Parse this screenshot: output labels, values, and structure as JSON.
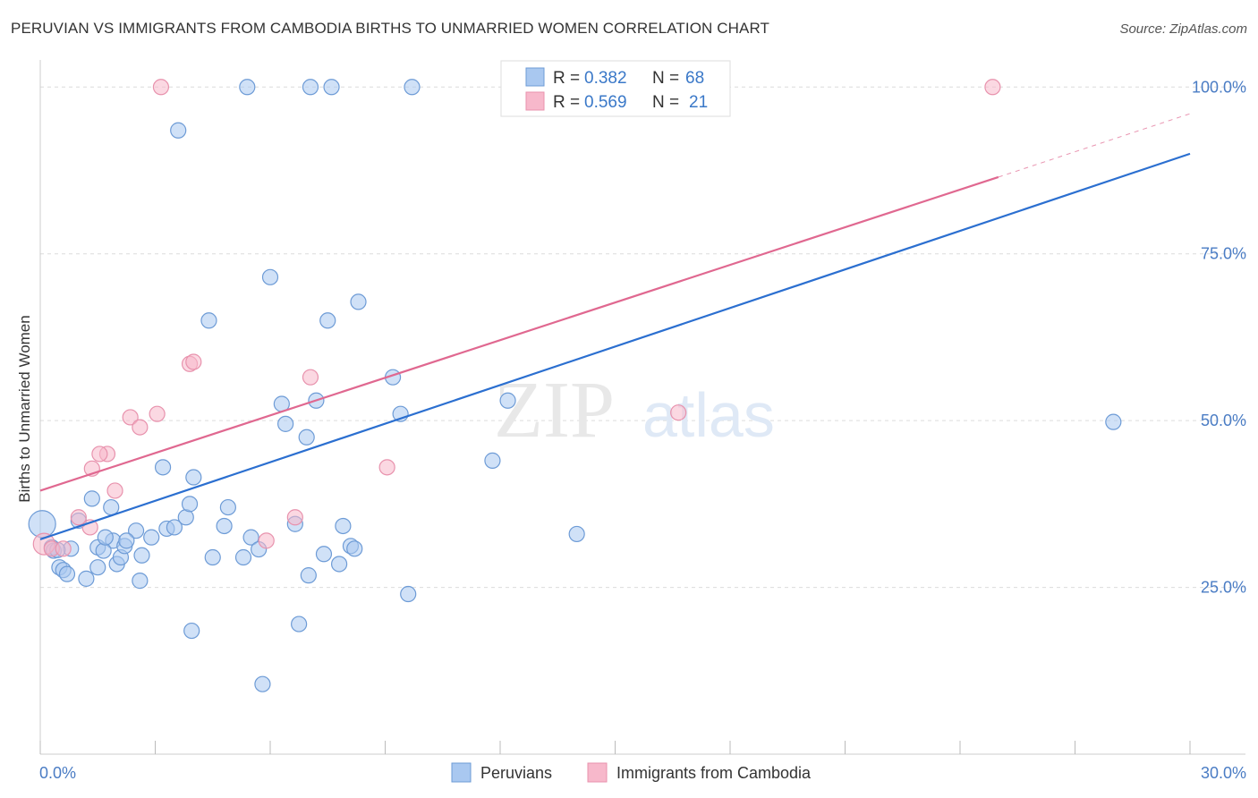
{
  "header": {
    "title": "PERUVIAN VS IMMIGRANTS FROM CAMBODIA BIRTHS TO UNMARRIED WOMEN CORRELATION CHART",
    "source": "Source: ZipAtlas.com"
  },
  "watermark": {
    "zip": "ZIP",
    "atlas": "atlas"
  },
  "legend": {
    "rows": [
      {
        "r_label": "R =",
        "r_value": "0.382",
        "n_label": "N =",
        "n_value": "68",
        "color": "#a9c8f0"
      },
      {
        "r_label": "R =",
        "r_value": "0.569",
        "n_label": "N =",
        "n_value": "21",
        "color": "#f7b8cb"
      }
    ]
  },
  "bottom_legend": [
    {
      "label": "Peruvians",
      "color": "#a9c8f0"
    },
    {
      "label": "Immigrants from Cambodia",
      "color": "#f7b8cb"
    }
  ],
  "chart_data": {
    "type": "scatter",
    "title": "PERUVIAN VS IMMIGRANTS FROM CAMBODIA BIRTHS TO UNMARRIED WOMEN CORRELATION CHART",
    "ylabel": "Births to Unmarried Women",
    "xlabel": "",
    "xlim": [
      0,
      30
    ],
    "ylim": [
      0,
      105
    ],
    "x_tick_labels": [
      {
        "v": 0,
        "label": "0.0%"
      },
      {
        "v": 30,
        "label": "30.0%"
      }
    ],
    "y_tick_labels": [
      {
        "v": 25,
        "label": "25.0%"
      },
      {
        "v": 50,
        "label": "50.0%"
      },
      {
        "v": 75,
        "label": "75.0%"
      },
      {
        "v": 100,
        "label": "100.0%"
      }
    ],
    "grid": true,
    "series": [
      {
        "name": "Peruvians",
        "color": "#a9c8f0",
        "stroke": "#6d9bd6",
        "line_color": "#2b6fd0",
        "trend": [
          [
            0,
            32.2
          ],
          [
            30,
            90.0
          ]
        ],
        "points": [
          [
            0.05,
            34.5
          ],
          [
            0.3,
            31.0
          ],
          [
            0.5,
            28.0
          ],
          [
            0.6,
            27.6
          ],
          [
            0.35,
            30.5
          ],
          [
            0.8,
            30.8
          ],
          [
            1.0,
            35.0
          ],
          [
            1.35,
            38.3
          ],
          [
            1.2,
            26.3
          ],
          [
            1.5,
            31.0
          ],
          [
            1.5,
            28.0
          ],
          [
            1.85,
            37.0
          ],
          [
            1.9,
            32.0
          ],
          [
            2.0,
            28.5
          ],
          [
            2.1,
            29.5
          ],
          [
            2.2,
            31.2
          ],
          [
            1.65,
            30.5
          ],
          [
            2.5,
            33.5
          ],
          [
            2.6,
            26.0
          ],
          [
            2.9,
            32.5
          ],
          [
            3.2,
            43.0
          ],
          [
            3.3,
            33.8
          ],
          [
            3.5,
            34.0
          ],
          [
            3.8,
            35.5
          ],
          [
            3.9,
            37.5
          ],
          [
            4.0,
            41.5
          ],
          [
            4.5,
            29.5
          ],
          [
            4.8,
            34.2
          ],
          [
            4.9,
            37.0
          ],
          [
            5.3,
            29.5
          ],
          [
            5.5,
            32.5
          ],
          [
            5.7,
            30.7
          ],
          [
            5.8,
            10.5
          ],
          [
            6.0,
            71.5
          ],
          [
            6.3,
            52.5
          ],
          [
            6.4,
            49.5
          ],
          [
            6.65,
            34.5
          ],
          [
            6.75,
            19.5
          ],
          [
            6.95,
            47.5
          ],
          [
            7.0,
            26.8
          ],
          [
            7.2,
            53.0
          ],
          [
            7.4,
            30.0
          ],
          [
            7.5,
            65.0
          ],
          [
            7.8,
            28.5
          ],
          [
            7.9,
            34.2
          ],
          [
            8.1,
            31.2
          ],
          [
            8.2,
            30.8
          ],
          [
            8.3,
            67.8
          ],
          [
            9.2,
            56.5
          ],
          [
            9.4,
            51.0
          ],
          [
            9.6,
            24.0
          ],
          [
            11.8,
            44.0
          ],
          [
            12.2,
            53.0
          ],
          [
            14.0,
            33.0
          ],
          [
            28.0,
            49.8
          ],
          [
            3.95,
            18.5
          ],
          [
            4.4,
            65.0
          ],
          [
            3.6,
            93.5
          ],
          [
            5.4,
            100.0
          ],
          [
            7.05,
            100.0
          ],
          [
            7.6,
            100.0
          ],
          [
            9.7,
            100.0
          ],
          [
            12.3,
            100.0
          ],
          [
            2.65,
            29.8
          ],
          [
            0.45,
            30.6
          ],
          [
            1.7,
            32.5
          ],
          [
            0.7,
            27.0
          ],
          [
            2.25,
            32.0
          ]
        ],
        "sizes": {
          "0": 15
        }
      },
      {
        "name": "Immigrants from Cambodia",
        "color": "#f7b8cb",
        "stroke": "#e892ad",
        "line_color": "#e06890",
        "trend": [
          [
            0,
            39.5
          ],
          [
            25.0,
            86.5
          ]
        ],
        "trend_ext": [
          [
            25.0,
            86.5
          ],
          [
            30,
            96.0
          ]
        ],
        "points": [
          [
            0.1,
            31.5
          ],
          [
            0.3,
            30.8
          ],
          [
            0.6,
            30.8
          ],
          [
            1.0,
            35.5
          ],
          [
            1.3,
            34.0
          ],
          [
            1.35,
            42.8
          ],
          [
            1.75,
            45.0
          ],
          [
            1.95,
            39.5
          ],
          [
            2.35,
            50.5
          ],
          [
            2.6,
            49.0
          ],
          [
            3.05,
            51.0
          ],
          [
            3.9,
            58.5
          ],
          [
            4.0,
            58.8
          ],
          [
            5.9,
            32.0
          ],
          [
            6.65,
            35.5
          ],
          [
            7.05,
            56.5
          ],
          [
            9.05,
            43.0
          ],
          [
            16.65,
            51.2
          ],
          [
            3.15,
            100.0
          ],
          [
            24.85,
            100.0
          ],
          [
            1.55,
            45.0
          ]
        ],
        "sizes": {
          "0": 12
        }
      }
    ]
  }
}
